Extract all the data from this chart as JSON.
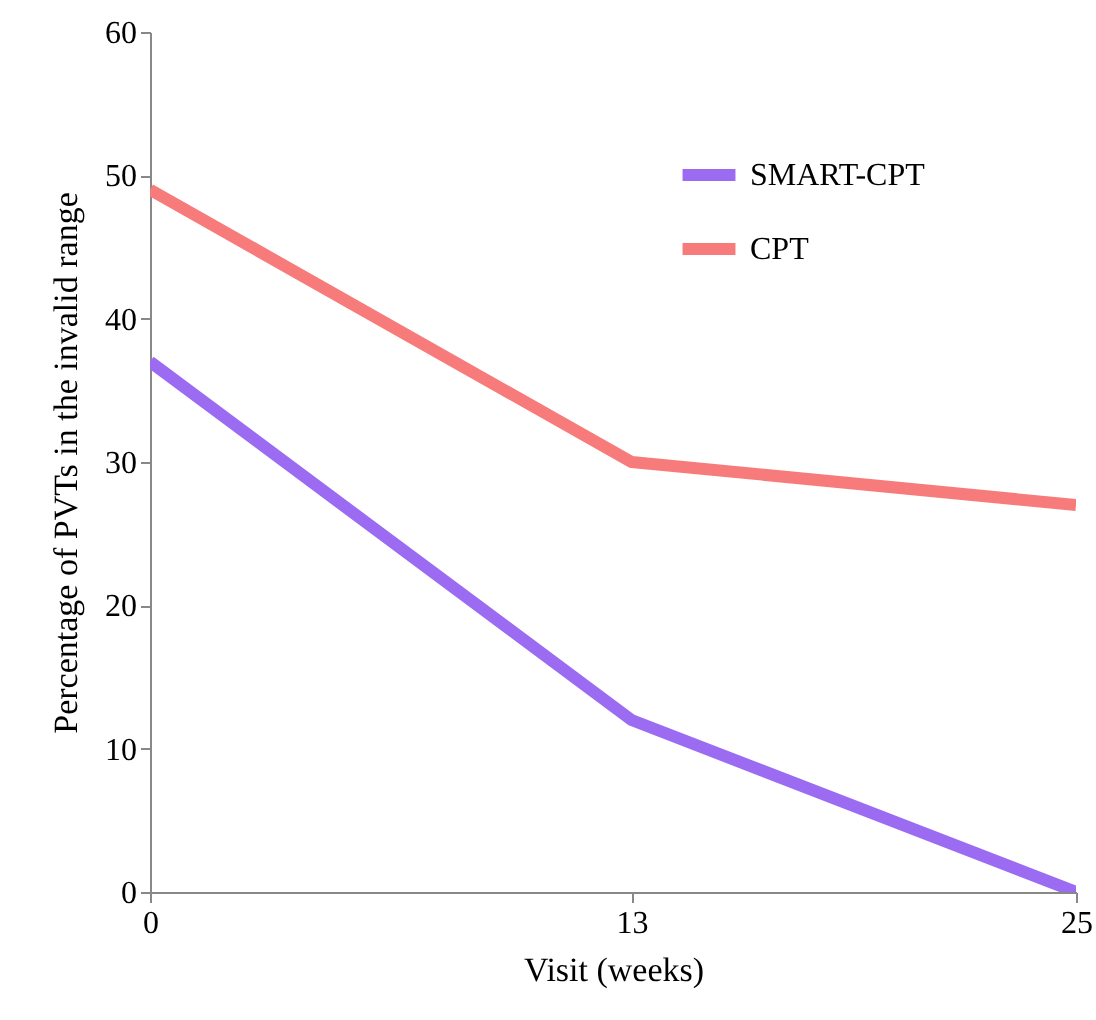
{
  "chart_data": {
    "type": "line",
    "xlabel": "Visit (weeks)",
    "ylabel": "Percentage of PVTs in the invalid range",
    "x": [
      0,
      13,
      25
    ],
    "xlim": [
      0,
      25
    ],
    "xticks": [
      0,
      13,
      25
    ],
    "ylim": [
      0,
      60
    ],
    "yticks": [
      0,
      10,
      20,
      30,
      40,
      50,
      60
    ],
    "series": [
      {
        "name": "SMART-CPT",
        "color": "#9b6bf2",
        "values": [
          37,
          12,
          0
        ]
      },
      {
        "name": "CPT",
        "color": "#f77b7b",
        "values": [
          49,
          30,
          27
        ]
      }
    ],
    "legend": "top right",
    "line_style": "solid"
  }
}
